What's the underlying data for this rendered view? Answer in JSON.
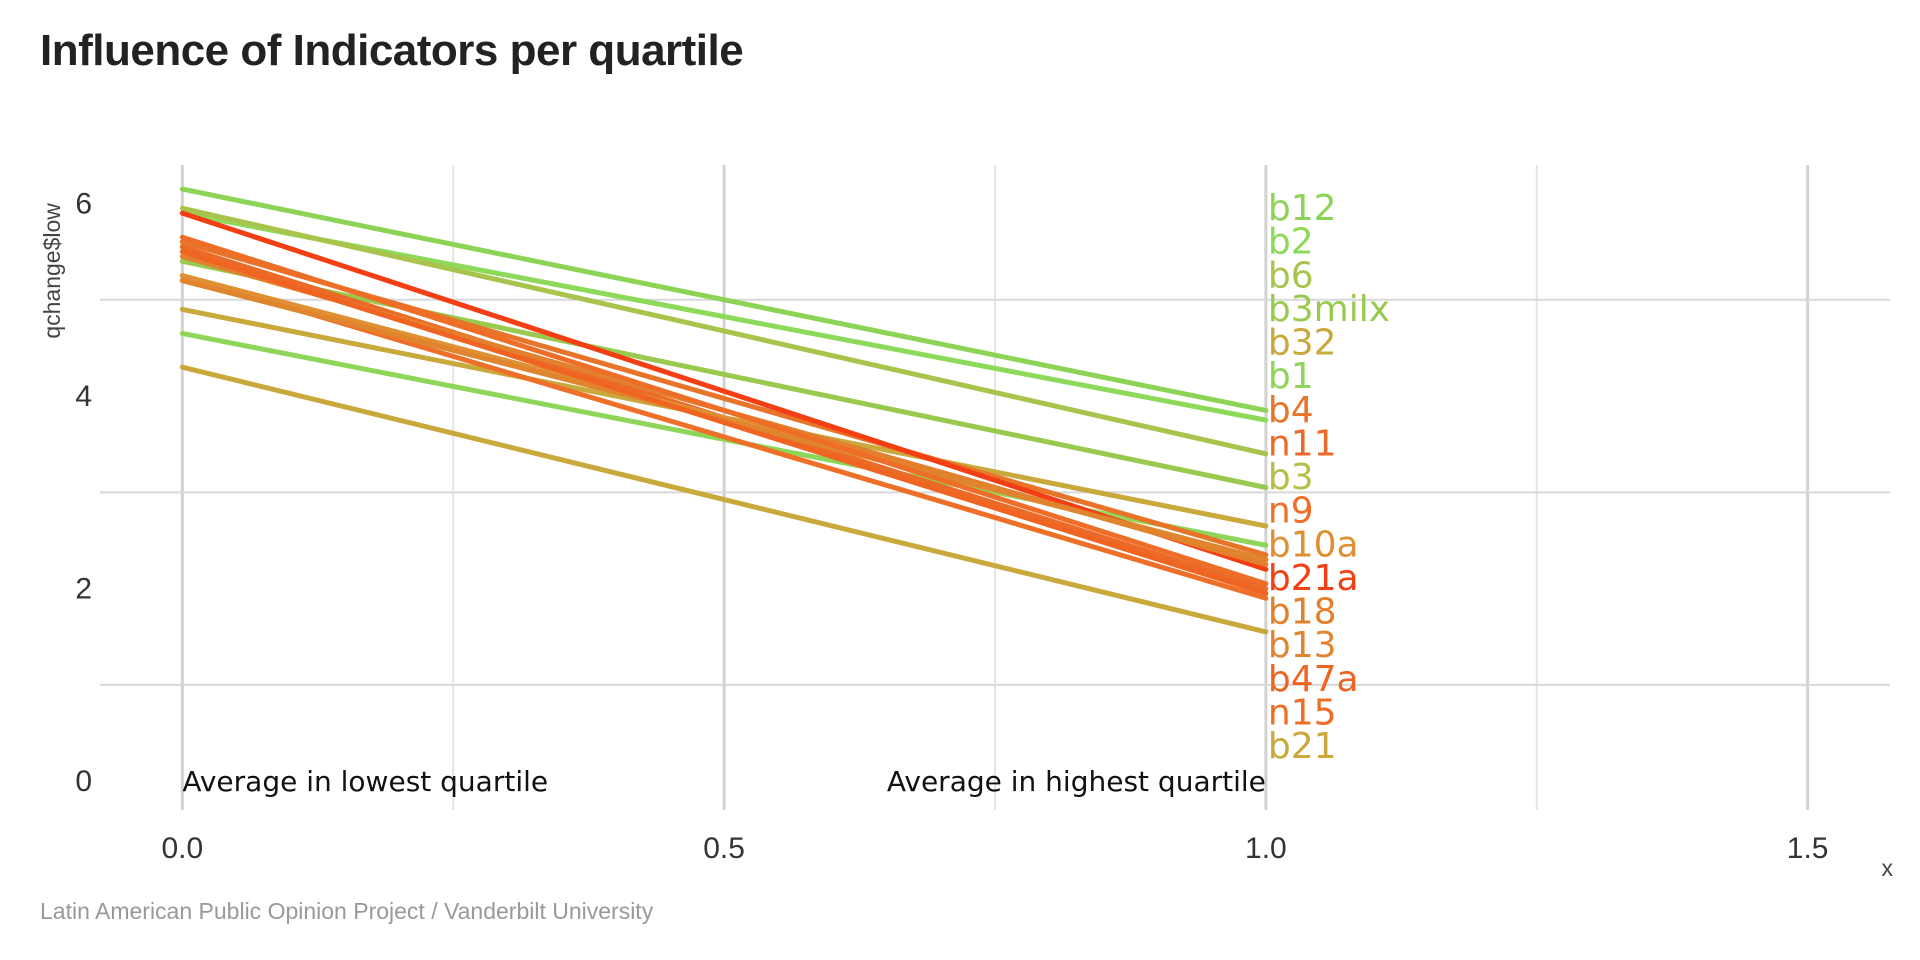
{
  "title": "Influence of Indicators per quartile",
  "caption": "Latin American Public Opinion Project / Vanderbilt University",
  "chart_data": {
    "type": "line",
    "title": "Influence of Indicators per quartile",
    "xlabel": "x",
    "ylabel": "qchange$low",
    "xlim": [
      -0.076,
      1.576
    ],
    "ylim": [
      -0.3,
      6.4
    ],
    "x_ticks": [
      "0.0",
      "0.5",
      "1.0",
      "1.5"
    ],
    "y_ticks": [
      "0",
      "2",
      "4",
      "6"
    ],
    "grid": true,
    "x": [
      0,
      1
    ],
    "annotations": [
      {
        "text": "Average in lowest quartile",
        "x": 0,
        "y": 0,
        "anchor": "start"
      },
      {
        "text": "Average in highest quartile",
        "x": 1,
        "y": 0,
        "anchor": "end"
      }
    ],
    "series": [
      {
        "name": "b12",
        "color": "#8cd455",
        "values": [
          6.15,
          3.85
        ]
      },
      {
        "name": "b2",
        "color": "#8dd95a",
        "values": [
          5.9,
          3.75
        ]
      },
      {
        "name": "b6",
        "color": "#a9c44c",
        "values": [
          5.95,
          3.4
        ]
      },
      {
        "name": "b3milx",
        "color": "#99c94e",
        "values": [
          5.4,
          3.05
        ]
      },
      {
        "name": "b32",
        "color": "#c9a83c",
        "values": [
          4.9,
          2.65
        ]
      },
      {
        "name": "b1",
        "color": "#8ed659",
        "values": [
          4.65,
          2.45
        ]
      },
      {
        "name": "b4",
        "color": "#e8742a",
        "values": [
          5.6,
          2.35
        ]
      },
      {
        "name": "n11",
        "color": "#ec6a28",
        "values": [
          5.55,
          2.0
        ]
      },
      {
        "name": "b3",
        "color": "#b5be45",
        "values": [
          5.2,
          2.3
        ]
      },
      {
        "name": "n9",
        "color": "#ee7028",
        "values": [
          5.25,
          1.9
        ]
      },
      {
        "name": "b10a",
        "color": "#e09032",
        "values": [
          5.25,
          2.3
        ]
      },
      {
        "name": "b21a",
        "color": "#f43e14",
        "values": [
          5.9,
          2.2
        ]
      },
      {
        "name": "b18",
        "color": "#e3802e",
        "values": [
          5.45,
          2.25
        ]
      },
      {
        "name": "b13",
        "color": "#e0852e",
        "values": [
          5.2,
          2.3
        ]
      },
      {
        "name": "b47a",
        "color": "#f06422",
        "values": [
          5.5,
          1.95
        ]
      },
      {
        "name": "n15",
        "color": "#ee6e27",
        "values": [
          5.65,
          2.05
        ]
      },
      {
        "name": "b21",
        "color": "#c9a83c",
        "values": [
          4.3,
          1.55
        ]
      }
    ]
  }
}
